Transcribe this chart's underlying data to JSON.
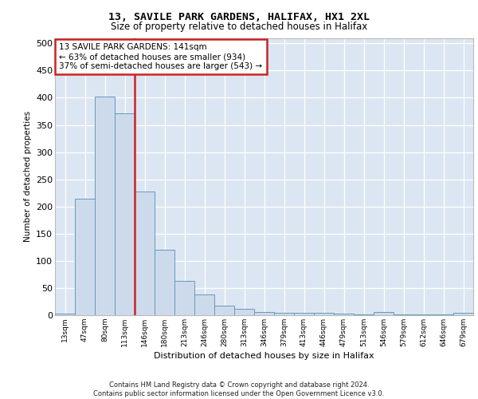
{
  "title1": "13, SAVILE PARK GARDENS, HALIFAX, HX1 2XL",
  "title2": "Size of property relative to detached houses in Halifax",
  "xlabel": "Distribution of detached houses by size in Halifax",
  "ylabel": "Number of detached properties",
  "bar_labels": [
    "13sqm",
    "47sqm",
    "80sqm",
    "113sqm",
    "146sqm",
    "180sqm",
    "213sqm",
    "246sqm",
    "280sqm",
    "313sqm",
    "346sqm",
    "379sqm",
    "413sqm",
    "446sqm",
    "479sqm",
    "513sqm",
    "546sqm",
    "579sqm",
    "612sqm",
    "646sqm",
    "679sqm"
  ],
  "bar_heights": [
    3,
    215,
    402,
    371,
    228,
    120,
    63,
    38,
    18,
    12,
    6,
    5,
    5,
    5,
    3,
    1,
    6,
    1,
    1,
    1,
    4
  ],
  "vline_x": 4,
  "annotation_text": "13 SAVILE PARK GARDENS: 141sqm\n← 63% of detached houses are smaller (934)\n37% of semi-detached houses are larger (543) →",
  "bar_color": "#cddaeb",
  "bar_edgecolor": "#6699bb",
  "vline_color": "#cc2222",
  "annotation_box_color": "#ffffff",
  "annotation_box_edgecolor": "#cc2222",
  "background_color": "#dce6f2",
  "ylim": [
    0,
    510
  ],
  "yticks": [
    0,
    50,
    100,
    150,
    200,
    250,
    300,
    350,
    400,
    450,
    500
  ],
  "footer": "Contains HM Land Registry data © Crown copyright and database right 2024.\nContains public sector information licensed under the Open Government Licence v3.0."
}
